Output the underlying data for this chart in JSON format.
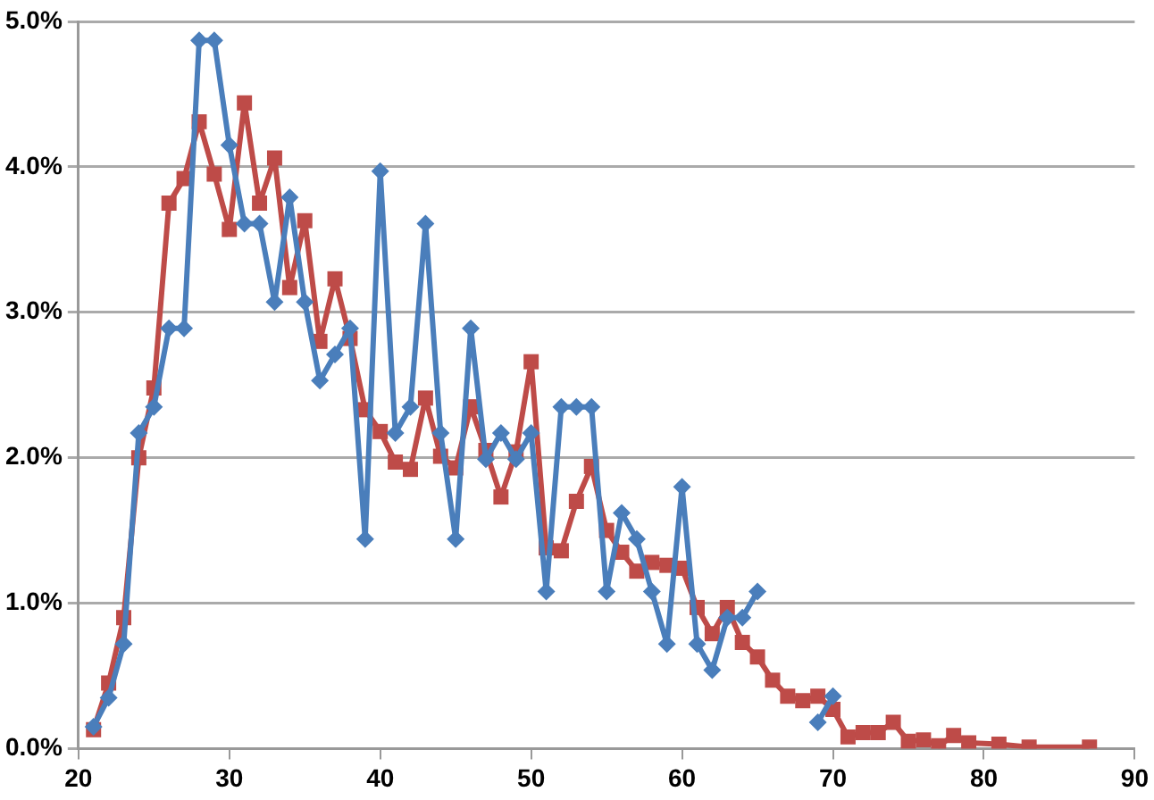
{
  "chart_data": {
    "type": "line",
    "xlim": [
      20,
      90
    ],
    "xticks": [
      20,
      30,
      40,
      50,
      60,
      70,
      80,
      90
    ],
    "ylim": [
      0,
      5
    ],
    "yticks": [
      {
        "value": 0,
        "label": "0.0%"
      },
      {
        "value": 1,
        "label": "1.0%"
      },
      {
        "value": 2,
        "label": "2.0%"
      },
      {
        "value": 3,
        "label": "3.0%"
      },
      {
        "value": 4,
        "label": "4.0%"
      },
      {
        "value": 5,
        "label": "5.0%"
      }
    ],
    "grid": "y",
    "legend": false,
    "series": [
      {
        "color": "#4a7ebb",
        "marker": "diamond",
        "x": [
          21,
          22,
          23,
          24,
          25,
          26,
          27,
          28,
          29,
          30,
          31,
          32,
          33,
          34,
          35,
          36,
          37,
          38,
          39,
          40,
          41,
          42,
          43,
          44,
          45,
          46,
          47,
          48,
          49,
          50,
          51,
          52,
          53,
          54,
          55,
          56,
          57,
          58,
          59,
          60,
          61,
          62,
          63,
          64,
          65,
          66,
          67,
          68,
          69,
          70
        ],
        "values": [
          0.15,
          0.35,
          0.72,
          2.17,
          2.35,
          2.89,
          2.89,
          4.87,
          4.87,
          4.15,
          3.61,
          3.61,
          3.07,
          3.79,
          3.07,
          2.53,
          2.71,
          2.89,
          1.44,
          3.97,
          2.17,
          2.35,
          3.61,
          2.17,
          1.44,
          2.89,
          1.99,
          2.17,
          1.99,
          2.17,
          1.08,
          2.35,
          2.35,
          2.35,
          1.08,
          1.62,
          1.44,
          1.08,
          0.72,
          1.8,
          0.72,
          0.54,
          0.9,
          0.9,
          1.08,
          null,
          null,
          null,
          0.18,
          0.36
        ]
      },
      {
        "color": "#be4b48",
        "marker": "square",
        "x": [
          21,
          22,
          23,
          24,
          25,
          26,
          27,
          28,
          29,
          30,
          31,
          32,
          33,
          34,
          35,
          36,
          37,
          38,
          39,
          40,
          41,
          42,
          43,
          44,
          45,
          46,
          47,
          48,
          49,
          50,
          51,
          52,
          53,
          54,
          55,
          56,
          57,
          58,
          59,
          60,
          61,
          62,
          63,
          64,
          65,
          66,
          67,
          68,
          69,
          70,
          71,
          72,
          73,
          74,
          75,
          76,
          77,
          78,
          79,
          81,
          83,
          87
        ],
        "values": [
          0.13,
          0.45,
          0.9,
          2.0,
          2.48,
          3.75,
          3.92,
          4.31,
          3.95,
          3.57,
          4.44,
          3.75,
          4.06,
          3.17,
          3.63,
          2.8,
          3.23,
          2.82,
          2.33,
          2.18,
          1.97,
          1.92,
          2.41,
          2.01,
          1.93,
          2.35,
          2.05,
          1.73,
          2.04,
          2.66,
          1.38,
          1.36,
          1.7,
          1.94,
          1.5,
          1.35,
          1.22,
          1.28,
          1.26,
          1.24,
          0.97,
          0.79,
          0.97,
          0.73,
          0.63,
          0.47,
          0.36,
          0.33,
          0.36,
          0.27,
          0.08,
          0.11,
          0.11,
          0.18,
          0.05,
          0.06,
          0.02,
          0.09,
          0.04,
          0.03,
          0.01,
          0.01
        ]
      }
    ]
  }
}
